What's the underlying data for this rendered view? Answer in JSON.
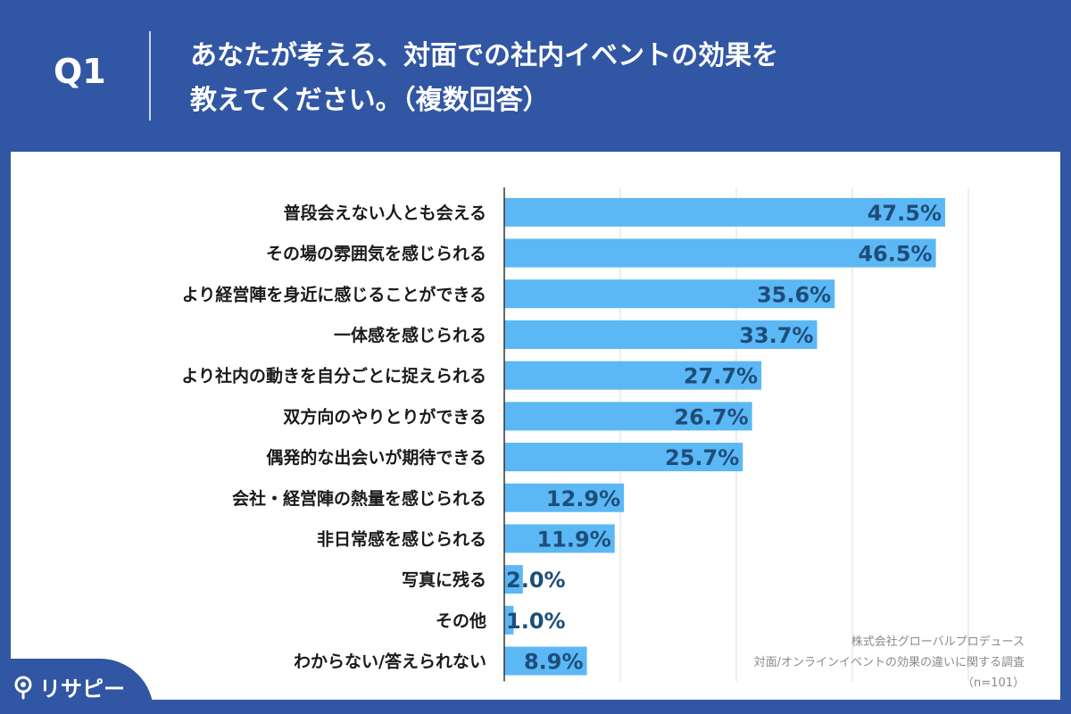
{
  "header": {
    "q_label": "Q1",
    "title_line1": "あなたが考える、対面での社内イベントの効果を",
    "title_line2": "教えてください。（複数回答）"
  },
  "source": {
    "company": "株式会社グローバルプロデュース",
    "survey": "対面/オンラインイベントの効果の違いに関する調査",
    "sample": "（n=101）"
  },
  "logo": {
    "text": "リサピー",
    "icon": "magnifier-pin-icon"
  },
  "colors": {
    "background": "#3156a3",
    "bar": "#5bb8f5",
    "value_text": "#1e4d7a",
    "grid": "#dddddd"
  },
  "chart_data": {
    "type": "bar",
    "orientation": "horizontal",
    "categories": [
      "普段会えない人とも会える",
      "その場の雰囲気を感じられる",
      "より経営陣を身近に感じることができる",
      "一体感を感じられる",
      "より社内の動きを自分ごとに捉えられる",
      "双方向のやりとりができる",
      "偶発的な出会いが期待できる",
      "会社・経営陣の熱量を感じられる",
      "非日常感を感じられる",
      "写真に残る",
      "その他",
      "わからない/答えられない"
    ],
    "values": [
      47.5,
      46.5,
      35.6,
      33.7,
      27.7,
      26.7,
      25.7,
      12.9,
      11.9,
      2.0,
      1.0,
      8.9
    ],
    "value_labels": [
      "47.5%",
      "46.5%",
      "35.6%",
      "33.7%",
      "27.7%",
      "26.7%",
      "25.7%",
      "12.9%",
      "11.9%",
      "2.0%",
      "1.0%",
      "8.9%"
    ],
    "xlim": [
      0,
      50
    ],
    "grid": true,
    "grid_interval": 12.5
  }
}
